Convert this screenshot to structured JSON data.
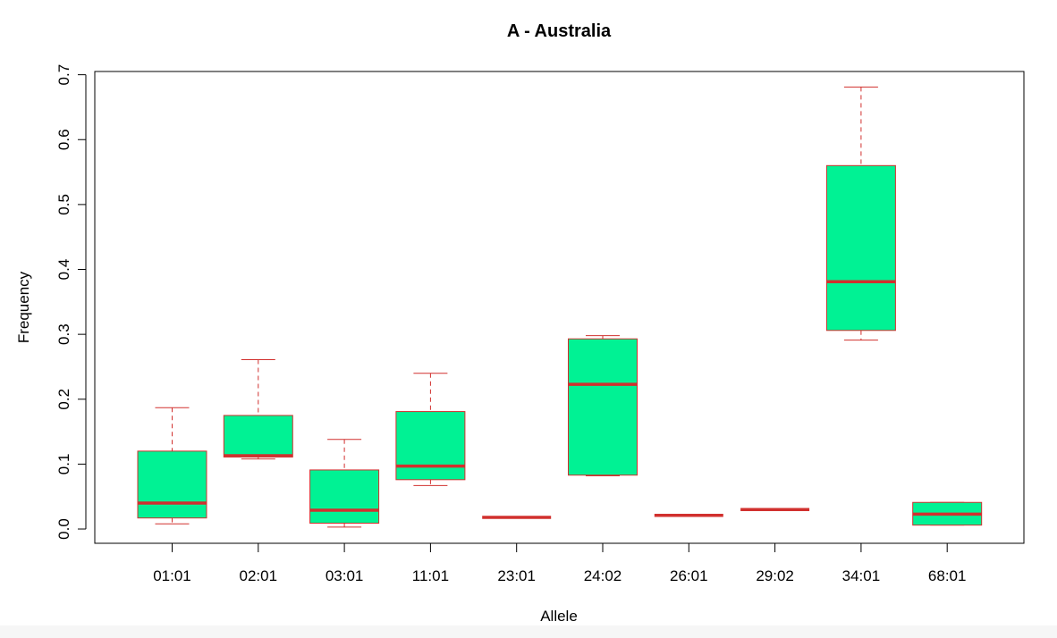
{
  "chart_data": {
    "type": "boxplot",
    "title": "A - Australia",
    "xlabel": "Allele",
    "ylabel": "Frequency",
    "ylim": [
      -0.022,
      0.705
    ],
    "yticks": [
      0.0,
      0.1,
      0.2,
      0.3,
      0.4,
      0.5,
      0.6,
      0.7
    ],
    "ytick_labels": [
      "0.0",
      "0.1",
      "0.2",
      "0.3",
      "0.4",
      "0.5",
      "0.6",
      "0.7"
    ],
    "categories": [
      "01:01",
      "02:01",
      "03:01",
      "11:01",
      "23:01",
      "24:02",
      "26:01",
      "29:02",
      "34:01",
      "68:01"
    ],
    "boxes": [
      {
        "label": "01:01",
        "min": 0.008,
        "q1": 0.017,
        "median": 0.04,
        "q3": 0.12,
        "max": 0.187
      },
      {
        "label": "02:01",
        "min": 0.108,
        "q1": 0.111,
        "median": 0.113,
        "q3": 0.175,
        "max": 0.261
      },
      {
        "label": "03:01",
        "min": 0.003,
        "q1": 0.009,
        "median": 0.029,
        "q3": 0.091,
        "max": 0.138
      },
      {
        "label": "11:01",
        "min": 0.067,
        "q1": 0.076,
        "median": 0.097,
        "q3": 0.181,
        "max": 0.24
      },
      {
        "label": "23:01",
        "min": 0.018,
        "q1": 0.018,
        "median": 0.018,
        "q3": 0.018,
        "max": 0.018
      },
      {
        "label": "24:02",
        "min": 0.082,
        "q1": 0.083,
        "median": 0.223,
        "q3": 0.293,
        "max": 0.298
      },
      {
        "label": "26:01",
        "min": 0.021,
        "q1": 0.021,
        "median": 0.021,
        "q3": 0.021,
        "max": 0.021
      },
      {
        "label": "29:02",
        "min": 0.03,
        "q1": 0.03,
        "median": 0.03,
        "q3": 0.03,
        "max": 0.03
      },
      {
        "label": "34:01",
        "min": 0.291,
        "q1": 0.306,
        "median": 0.381,
        "q3": 0.56,
        "max": 0.681
      },
      {
        "label": "68:01",
        "min": 0.006,
        "q1": 0.006,
        "median": 0.023,
        "q3": 0.041,
        "max": 0.041
      }
    ],
    "box_fill": "#00f294",
    "line_color": "#d1302e",
    "grid": false,
    "legend": false
  }
}
